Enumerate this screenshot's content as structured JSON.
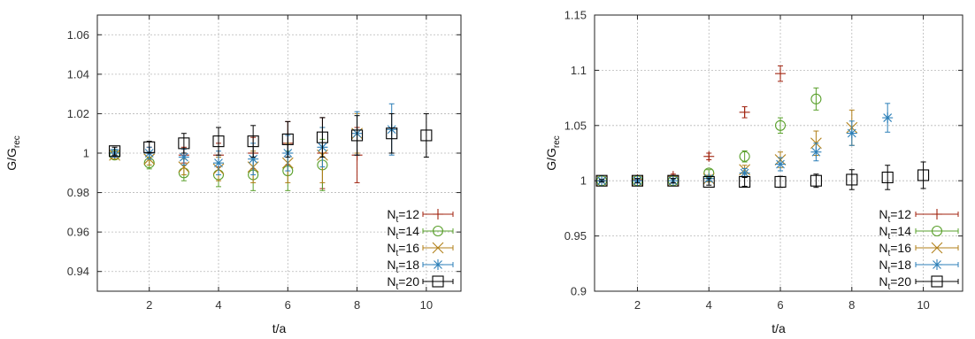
{
  "colors": {
    "Nt=12": "#a0220e",
    "Nt=14": "#5aa02c",
    "Nt=16": "#b07f18",
    "Nt=18": "#2c7fb8",
    "Nt=20": "#000000"
  },
  "chart_data": [
    {
      "type": "scatter",
      "xlabel": "t/a",
      "ylabel_main": "G/G",
      "ylabel_sub": "rec",
      "xlim": [
        0.5,
        11
      ],
      "ylim": [
        0.93,
        1.07
      ],
      "xticks": [
        2,
        4,
        6,
        8,
        10
      ],
      "yticks": [
        0.94,
        0.96,
        0.98,
        1,
        1.02,
        1.04,
        1.06
      ],
      "ytick_labels": [
        "0.94",
        "0.96",
        "0.98",
        "1",
        "1.02",
        "1.04",
        "1.06"
      ],
      "grid": true,
      "legend_position": "bottom-right",
      "series": [
        {
          "name_main": "N",
          "name_sub": "t",
          "name_suffix": "=12",
          "color_key": "Nt=12",
          "marker": "plus",
          "points": [
            [
              1,
              1.0,
              0.002
            ],
            [
              2,
              1.0,
              0.003
            ],
            [
              3,
              0.999,
              0.004
            ],
            [
              4,
              0.999,
              0.006
            ],
            [
              5,
              1.0,
              0.008
            ],
            [
              6,
              1.005,
              0.011
            ],
            [
              7,
              1.0,
              0.018
            ],
            [
              8,
              0.999,
              0.014
            ]
          ]
        },
        {
          "name_main": "N",
          "name_sub": "t",
          "name_suffix": "=14",
          "color_key": "Nt=14",
          "marker": "circle",
          "points": [
            [
              1,
              0.999,
              0.002
            ],
            [
              2,
              0.995,
              0.003
            ],
            [
              3,
              0.99,
              0.004
            ],
            [
              4,
              0.989,
              0.006
            ],
            [
              5,
              0.989,
              0.008
            ],
            [
              6,
              0.991,
              0.01
            ],
            [
              7,
              0.994,
              0.013
            ]
          ]
        },
        {
          "name_main": "N",
          "name_sub": "t",
          "name_suffix": "=16",
          "color_key": "Nt=16",
          "marker": "x",
          "points": [
            [
              1,
              0.999,
              0.002
            ],
            [
              2,
              0.997,
              0.003
            ],
            [
              3,
              0.993,
              0.004
            ],
            [
              4,
              0.992,
              0.006
            ],
            [
              5,
              0.993,
              0.008
            ],
            [
              6,
              0.995,
              0.01
            ],
            [
              7,
              0.999,
              0.014
            ],
            [
              8,
              1.01,
              0.01
            ]
          ]
        },
        {
          "name_main": "N",
          "name_sub": "t",
          "name_suffix": "=18",
          "color_key": "Nt=18",
          "marker": "star",
          "points": [
            [
              1,
              1.0,
              0.002
            ],
            [
              2,
              1.0,
              0.003
            ],
            [
              3,
              0.998,
              0.004
            ],
            [
              4,
              0.995,
              0.006
            ],
            [
              5,
              0.997,
              0.008
            ],
            [
              6,
              1.0,
              0.009
            ],
            [
              7,
              1.003,
              0.01
            ],
            [
              8,
              1.01,
              0.011
            ],
            [
              9,
              1.012,
              0.013
            ]
          ]
        },
        {
          "name_main": "N",
          "name_sub": "t",
          "name_suffix": "=20",
          "color_key": "Nt=20",
          "marker": "square",
          "points": [
            [
              1,
              1.001,
              0.002
            ],
            [
              2,
              1.003,
              0.003
            ],
            [
              3,
              1.005,
              0.005
            ],
            [
              4,
              1.006,
              0.007
            ],
            [
              5,
              1.006,
              0.008
            ],
            [
              6,
              1.007,
              0.009
            ],
            [
              7,
              1.008,
              0.01
            ],
            [
              8,
              1.009,
              0.01
            ],
            [
              9,
              1.01,
              0.01
            ],
            [
              10,
              1.009,
              0.011
            ]
          ]
        }
      ]
    },
    {
      "type": "scatter",
      "xlabel": "t/a",
      "ylabel_main": "G/G",
      "ylabel_sub": "rec",
      "xlim": [
        0.8,
        11.1
      ],
      "ylim": [
        0.9,
        1.15
      ],
      "xticks": [
        2,
        4,
        6,
        8,
        10
      ],
      "yticks": [
        0.9,
        0.95,
        1,
        1.05,
        1.1,
        1.15
      ],
      "ytick_labels": [
        "0.9",
        "0.95",
        "1",
        "1.05",
        "1.1",
        "1.15"
      ],
      "grid": true,
      "legend_position": "bottom-right",
      "series": [
        {
          "name_main": "N",
          "name_sub": "t",
          "name_suffix": "=12",
          "color_key": "Nt=12",
          "marker": "plus",
          "points": [
            [
              1,
              1.0,
              0.001
            ],
            [
              2,
              1.001,
              0.001
            ],
            [
              3,
              1.004,
              0.002
            ],
            [
              4,
              1.022,
              0.003
            ],
            [
              5,
              1.062,
              0.005
            ],
            [
              6,
              1.097,
              0.007
            ]
          ]
        },
        {
          "name_main": "N",
          "name_sub": "t",
          "name_suffix": "=14",
          "color_key": "Nt=14",
          "marker": "circle",
          "points": [
            [
              1,
              1.0,
              0.001
            ],
            [
              2,
              1.0,
              0.001
            ],
            [
              3,
              1.0,
              0.002
            ],
            [
              4,
              1.007,
              0.003
            ],
            [
              5,
              1.022,
              0.005
            ],
            [
              6,
              1.05,
              0.007
            ],
            [
              7,
              1.074,
              0.01
            ]
          ]
        },
        {
          "name_main": "N",
          "name_sub": "t",
          "name_suffix": "=16",
          "color_key": "Nt=16",
          "marker": "x",
          "points": [
            [
              1,
              1.0,
              0.001
            ],
            [
              2,
              1.0,
              0.001
            ],
            [
              3,
              1.0,
              0.002
            ],
            [
              4,
              1.002,
              0.003
            ],
            [
              5,
              1.01,
              0.004
            ],
            [
              6,
              1.019,
              0.007
            ],
            [
              7,
              1.034,
              0.011
            ],
            [
              8,
              1.048,
              0.016
            ]
          ]
        },
        {
          "name_main": "N",
          "name_sub": "t",
          "name_suffix": "=18",
          "color_key": "Nt=18",
          "marker": "star",
          "points": [
            [
              1,
              1.0,
              0.001
            ],
            [
              2,
              1.0,
              0.001
            ],
            [
              3,
              1.0,
              0.002
            ],
            [
              4,
              1.002,
              0.002
            ],
            [
              5,
              1.007,
              0.004
            ],
            [
              6,
              1.015,
              0.006
            ],
            [
              7,
              1.026,
              0.008
            ],
            [
              8,
              1.043,
              0.011
            ],
            [
              9,
              1.057,
              0.013
            ]
          ]
        },
        {
          "name_main": "N",
          "name_sub": "t",
          "name_suffix": "=20",
          "color_key": "Nt=20",
          "marker": "square",
          "points": [
            [
              1,
              1.0,
              0.001
            ],
            [
              2,
              1.0,
              0.002
            ],
            [
              3,
              1.0,
              0.002
            ],
            [
              4,
              0.999,
              0.003
            ],
            [
              5,
              0.999,
              0.004
            ],
            [
              6,
              0.999,
              0.005
            ],
            [
              7,
              1.0,
              0.006
            ],
            [
              8,
              1.001,
              0.009
            ],
            [
              9,
              1.003,
              0.011
            ],
            [
              10,
              1.005,
              0.012
            ]
          ]
        }
      ]
    }
  ]
}
